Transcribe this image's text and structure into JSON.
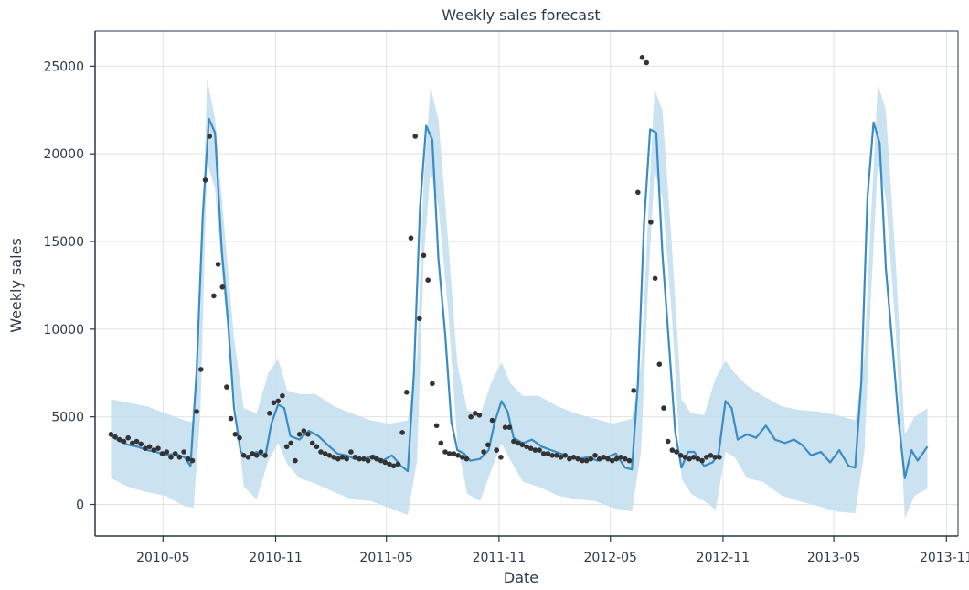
{
  "chart_data": {
    "type": "line",
    "title": "Weekly sales forecast",
    "xlabel": "Date",
    "ylabel": "Weekly sales",
    "x_ticks": [
      "2010-05",
      "2010-11",
      "2011-05",
      "2011-11",
      "2012-05",
      "2012-11",
      "2013-05",
      "2013-11"
    ],
    "y_ticks": [
      0,
      5000,
      10000,
      15000,
      20000,
      25000
    ],
    "xlim": [
      "2010-01-10",
      "2013-11-20"
    ],
    "ylim": [
      -1800,
      27000
    ],
    "grid": true,
    "colors": {
      "forecast": "#3a8cc4",
      "interval": "#c5e0ef",
      "observed": "#333333",
      "axis": "#24384a",
      "grid": "#e2e2e2"
    },
    "series": [
      {
        "kind": "forecast",
        "x": [
          "2010-02-05",
          "2010-02-20",
          "2010-03-05",
          "2010-03-20",
          "2010-04-05",
          "2010-04-20",
          "2010-05-05",
          "2010-05-20",
          "2010-06-05",
          "2010-06-15",
          "2010-06-25",
          "2010-07-05",
          "2010-07-15",
          "2010-07-25",
          "2010-08-05",
          "2010-08-15",
          "2010-08-25",
          "2010-09-05",
          "2010-09-15",
          "2010-10-01",
          "2010-10-15",
          "2010-10-25",
          "2010-11-05",
          "2010-11-15",
          "2010-11-25",
          "2010-12-10",
          "2010-12-25",
          "2011-01-10",
          "2011-01-25",
          "2011-02-10",
          "2011-02-25",
          "2011-03-10",
          "2011-03-25",
          "2011-04-10",
          "2011-04-25",
          "2011-05-10",
          "2011-05-25",
          "2011-06-05",
          "2011-06-15",
          "2011-06-25",
          "2011-07-05",
          "2011-07-15",
          "2011-07-25",
          "2011-08-05",
          "2011-08-15",
          "2011-08-25",
          "2011-09-05",
          "2011-09-15",
          "2011-10-01",
          "2011-10-15",
          "2011-10-25",
          "2011-11-05",
          "2011-11-15",
          "2011-11-25",
          "2011-12-10",
          "2011-12-25",
          "2012-01-10",
          "2012-01-25",
          "2012-02-10",
          "2012-02-25",
          "2012-03-10",
          "2012-03-25",
          "2012-04-10",
          "2012-04-25",
          "2012-05-10",
          "2012-05-25",
          "2012-06-05",
          "2012-06-15",
          "2012-06-25",
          "2012-07-05",
          "2012-07-15",
          "2012-07-25",
          "2012-08-05",
          "2012-08-15",
          "2012-08-25",
          "2012-09-05",
          "2012-09-15",
          "2012-10-01",
          "2012-10-15",
          "2012-10-25",
          "2012-11-05",
          "2012-11-15",
          "2012-11-25",
          "2012-12-10",
          "2012-12-25",
          "2013-01-10",
          "2013-01-25",
          "2013-02-10",
          "2013-02-25",
          "2013-03-10",
          "2013-03-25",
          "2013-04-10",
          "2013-04-25",
          "2013-05-10",
          "2013-05-25",
          "2013-06-05",
          "2013-06-15",
          "2013-06-25",
          "2013-07-05",
          "2013-07-15",
          "2013-07-25",
          "2013-08-05",
          "2013-08-15",
          "2013-08-25",
          "2013-09-05",
          "2013-09-15",
          "2013-10-01"
        ],
        "y": [
          3900,
          3600,
          3400,
          3300,
          3100,
          3000,
          2800,
          2900,
          2700,
          2200,
          7600,
          16500,
          22000,
          21200,
          14500,
          10500,
          5500,
          3000,
          2700,
          3000,
          2700,
          4600,
          5700,
          5500,
          3900,
          3700,
          4200,
          3900,
          3400,
          2900,
          2800,
          2600,
          2600,
          2800,
          2500,
          2800,
          2200,
          1900,
          7500,
          17000,
          21600,
          20800,
          14000,
          9700,
          4700,
          3100,
          2900,
          2500,
          2600,
          3100,
          4700,
          5900,
          5300,
          3800,
          3500,
          3700,
          3300,
          3100,
          2900,
          2700,
          2600,
          2700,
          2500,
          2700,
          2900,
          2100,
          2000,
          6900,
          16000,
          21400,
          21200,
          14300,
          9000,
          4100,
          2100,
          3000,
          3000,
          2200,
          2400,
          2900,
          5900,
          5500,
          3700,
          4000,
          3800,
          4500,
          3700,
          3500,
          3700,
          3400,
          2800,
          3000,
          2400,
          3100,
          2200,
          2100,
          7000,
          17500,
          21800,
          20600,
          13500,
          9000,
          4700,
          1500,
          3100,
          2500,
          3300
        ]
      },
      {
        "kind": "observed",
        "x": [
          "2010-02-05",
          "2010-02-12",
          "2010-02-19",
          "2010-02-26",
          "2010-03-05",
          "2010-03-12",
          "2010-03-19",
          "2010-03-26",
          "2010-04-02",
          "2010-04-09",
          "2010-04-16",
          "2010-04-23",
          "2010-04-30",
          "2010-05-07",
          "2010-05-14",
          "2010-05-21",
          "2010-05-28",
          "2010-06-04",
          "2010-06-11",
          "2010-06-18",
          "2010-06-25",
          "2010-07-02",
          "2010-07-09",
          "2010-07-16",
          "2010-07-23",
          "2010-07-30",
          "2010-08-06",
          "2010-08-13",
          "2010-08-20",
          "2010-08-27",
          "2010-09-03",
          "2010-09-10",
          "2010-09-17",
          "2010-09-24",
          "2010-10-01",
          "2010-10-08",
          "2010-10-15",
          "2010-10-22",
          "2010-10-29",
          "2010-11-05",
          "2010-11-12",
          "2010-11-19",
          "2010-11-26",
          "2010-12-03",
          "2010-12-10",
          "2010-12-17",
          "2010-12-24",
          "2010-12-31",
          "2011-01-07",
          "2011-01-14",
          "2011-01-21",
          "2011-01-28",
          "2011-02-04",
          "2011-02-11",
          "2011-02-18",
          "2011-02-25",
          "2011-03-04",
          "2011-03-11",
          "2011-03-18",
          "2011-03-25",
          "2011-04-01",
          "2011-04-08",
          "2011-04-15",
          "2011-04-22",
          "2011-04-29",
          "2011-05-06",
          "2011-05-13",
          "2011-05-20",
          "2011-05-27",
          "2011-06-03",
          "2011-06-10",
          "2011-06-17",
          "2011-06-24",
          "2011-07-01",
          "2011-07-08",
          "2011-07-15",
          "2011-07-22",
          "2011-07-29",
          "2011-08-05",
          "2011-08-12",
          "2011-08-19",
          "2011-08-26",
          "2011-09-02",
          "2011-09-09",
          "2011-09-16",
          "2011-09-23",
          "2011-09-30",
          "2011-10-07",
          "2011-10-14",
          "2011-10-21",
          "2011-10-28",
          "2011-11-04",
          "2011-11-11",
          "2011-11-18",
          "2011-11-25",
          "2011-12-02",
          "2011-12-09",
          "2011-12-16",
          "2011-12-23",
          "2011-12-30",
          "2012-01-06",
          "2012-01-13",
          "2012-01-20",
          "2012-01-27",
          "2012-02-03",
          "2012-02-10",
          "2012-02-17",
          "2012-02-24",
          "2012-03-02",
          "2012-03-09",
          "2012-03-16",
          "2012-03-23",
          "2012-03-30",
          "2012-04-06",
          "2012-04-13",
          "2012-04-20",
          "2012-04-27",
          "2012-05-04",
          "2012-05-11",
          "2012-05-18",
          "2012-05-25",
          "2012-06-01",
          "2012-06-08",
          "2012-06-15",
          "2012-06-22",
          "2012-06-29",
          "2012-07-06",
          "2012-07-13",
          "2012-07-20",
          "2012-07-27",
          "2012-08-03",
          "2012-08-10",
          "2012-08-17",
          "2012-08-24",
          "2012-08-31",
          "2012-09-07",
          "2012-09-14",
          "2012-09-21",
          "2012-09-28",
          "2012-10-05",
          "2012-10-12",
          "2012-10-19",
          "2012-10-26"
        ],
        "y": [
          4000,
          3850,
          3700,
          3600,
          3800,
          3500,
          3600,
          3450,
          3200,
          3300,
          3100,
          3200,
          2900,
          3000,
          2700,
          2900,
          2700,
          3000,
          2600,
          2500,
          5300,
          7700,
          18500,
          21000,
          11900,
          13700,
          12400,
          6700,
          4900,
          4000,
          3800,
          2800,
          2700,
          2900,
          2800,
          3000,
          2800,
          5200,
          5800,
          5900,
          6200,
          3300,
          3500,
          2500,
          4000,
          4200,
          4000,
          3500,
          3300,
          3000,
          2900,
          2800,
          2700,
          2600,
          2700,
          2600,
          3000,
          2700,
          2600,
          2600,
          2500,
          2700,
          2600,
          2500,
          2400,
          2300,
          2200,
          2300,
          4100,
          6400,
          15200,
          21000,
          10600,
          14200,
          12800,
          6900,
          4500,
          3500,
          3000,
          2900,
          2900,
          2800,
          2700,
          2600,
          5000,
          5200,
          5100,
          3000,
          3400,
          4800,
          3100,
          2700,
          4400,
          4400,
          3600,
          3500,
          3400,
          3300,
          3200,
          3100,
          3100,
          2900,
          2900,
          2800,
          2800,
          2700,
          2800,
          2600,
          2700,
          2600,
          2500,
          2500,
          2600,
          2800,
          2600,
          2700,
          2600,
          2500,
          2600,
          2700,
          2600,
          2500,
          6500,
          17800,
          25500,
          25200,
          16100,
          12900,
          8000,
          5500,
          3600,
          3100,
          3000,
          2800,
          2700,
          2600,
          2700,
          2600,
          2500,
          2700,
          2800,
          2700,
          2700
        ]
      }
    ],
    "interval": {
      "x": [
        "2010-02-05",
        "2010-03-05",
        "2010-04-05",
        "2010-05-05",
        "2010-06-05",
        "2010-06-20",
        "2010-07-01",
        "2010-07-12",
        "2010-07-25",
        "2010-08-10",
        "2010-08-25",
        "2010-09-10",
        "2010-10-01",
        "2010-10-20",
        "2010-11-05",
        "2010-11-20",
        "2010-12-10",
        "2011-01-05",
        "2011-02-05",
        "2011-03-05",
        "2011-04-05",
        "2011-05-05",
        "2011-06-05",
        "2011-06-20",
        "2011-07-01",
        "2011-07-12",
        "2011-07-25",
        "2011-08-10",
        "2011-08-25",
        "2011-09-10",
        "2011-10-01",
        "2011-10-20",
        "2011-11-05",
        "2011-11-20",
        "2011-12-10",
        "2012-01-05",
        "2012-02-05",
        "2012-03-05",
        "2012-04-05",
        "2012-05-05",
        "2012-06-05",
        "2012-06-20",
        "2012-07-01",
        "2012-07-12",
        "2012-07-25",
        "2012-08-10",
        "2012-08-25",
        "2012-09-10",
        "2012-10-01",
        "2012-10-20",
        "2012-11-05",
        "2012-11-20",
        "2012-12-10",
        "2013-01-05",
        "2013-02-05",
        "2013-03-05",
        "2013-04-05",
        "2013-05-05",
        "2013-06-05",
        "2013-06-20",
        "2013-07-01",
        "2013-07-12",
        "2013-07-25",
        "2013-08-10",
        "2013-08-25",
        "2013-09-10",
        "2013-10-01"
      ],
      "lower": [
        1500,
        1000,
        700,
        500,
        -100,
        -200,
        5200,
        19500,
        18000,
        11500,
        6500,
        1000,
        300,
        2500,
        3500,
        2300,
        1500,
        1200,
        700,
        300,
        200,
        -200,
        -600,
        2500,
        14000,
        19000,
        17000,
        11000,
        3500,
        600,
        200,
        2000,
        3500,
        2500,
        1300,
        1000,
        500,
        300,
        200,
        -200,
        -400,
        3000,
        12000,
        19000,
        17500,
        10500,
        1500,
        600,
        200,
        -300,
        3000,
        2700,
        1500,
        1300,
        500,
        200,
        -100,
        -400,
        -500,
        3000,
        12000,
        19500,
        17500,
        10000,
        -800,
        500,
        900
      ],
      "upper": [
        6000,
        5800,
        5600,
        5200,
        4800,
        4700,
        11000,
        24300,
        22000,
        15500,
        9500,
        5500,
        5200,
        7500,
        8300,
        6500,
        6300,
        6300,
        5600,
        5200,
        4800,
        4600,
        4800,
        8500,
        18500,
        23800,
        22000,
        15000,
        8000,
        5400,
        5100,
        7000,
        8100,
        6900,
        6200,
        6200,
        5600,
        5200,
        4900,
        4600,
        4900,
        8000,
        16000,
        23700,
        22500,
        14500,
        6000,
        5200,
        5100,
        7200,
        8200,
        7500,
        6800,
        6200,
        5600,
        5400,
        5300,
        5100,
        4800,
        8500,
        16500,
        24000,
        22500,
        14000,
        4000,
        5000,
        5500
      ]
    }
  }
}
